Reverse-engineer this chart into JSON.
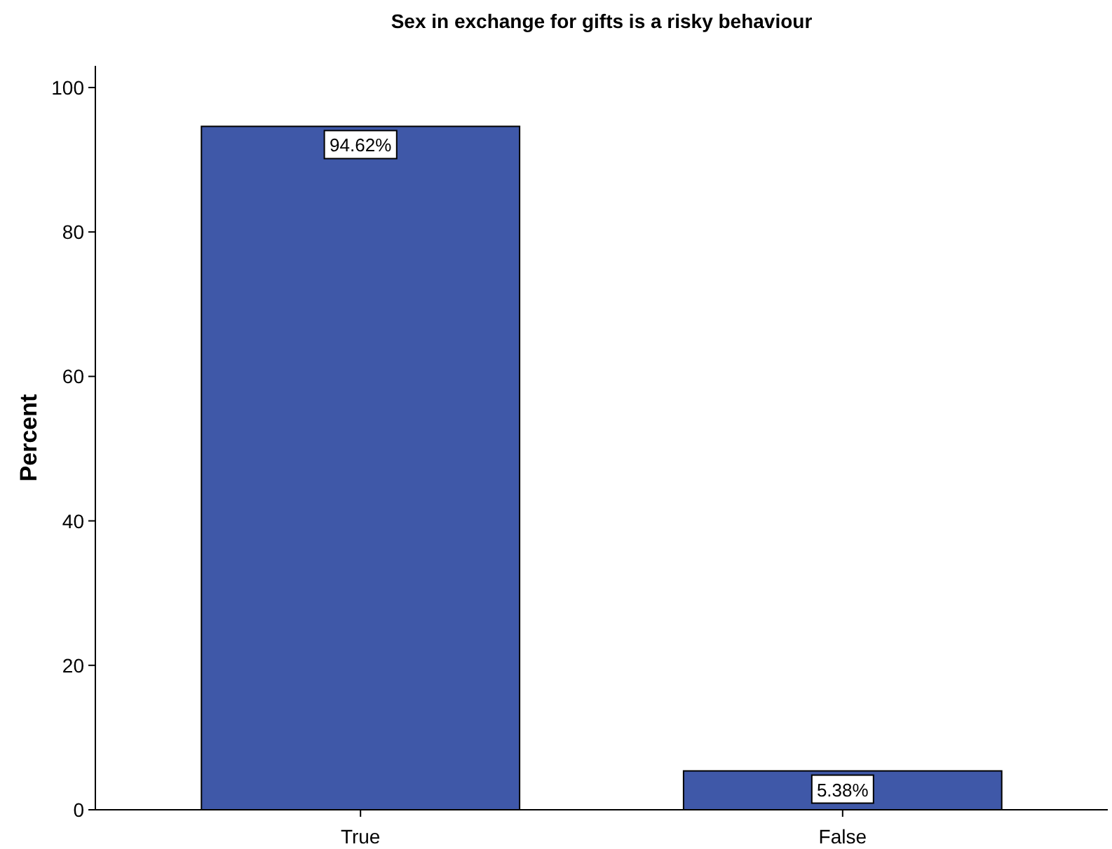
{
  "chart_data": {
    "type": "bar",
    "title": "Sex in exchange for gifts is a risky behaviour",
    "ylabel": "Percent",
    "categories": [
      "True",
      "False"
    ],
    "values": [
      94.62,
      5.38
    ],
    "value_labels": [
      "94.62%",
      "5.38%"
    ],
    "color": "#3f58a8",
    "ylim": [
      0,
      103
    ],
    "yticks": [
      0,
      20,
      40,
      60,
      80,
      100
    ],
    "grid": false
  }
}
